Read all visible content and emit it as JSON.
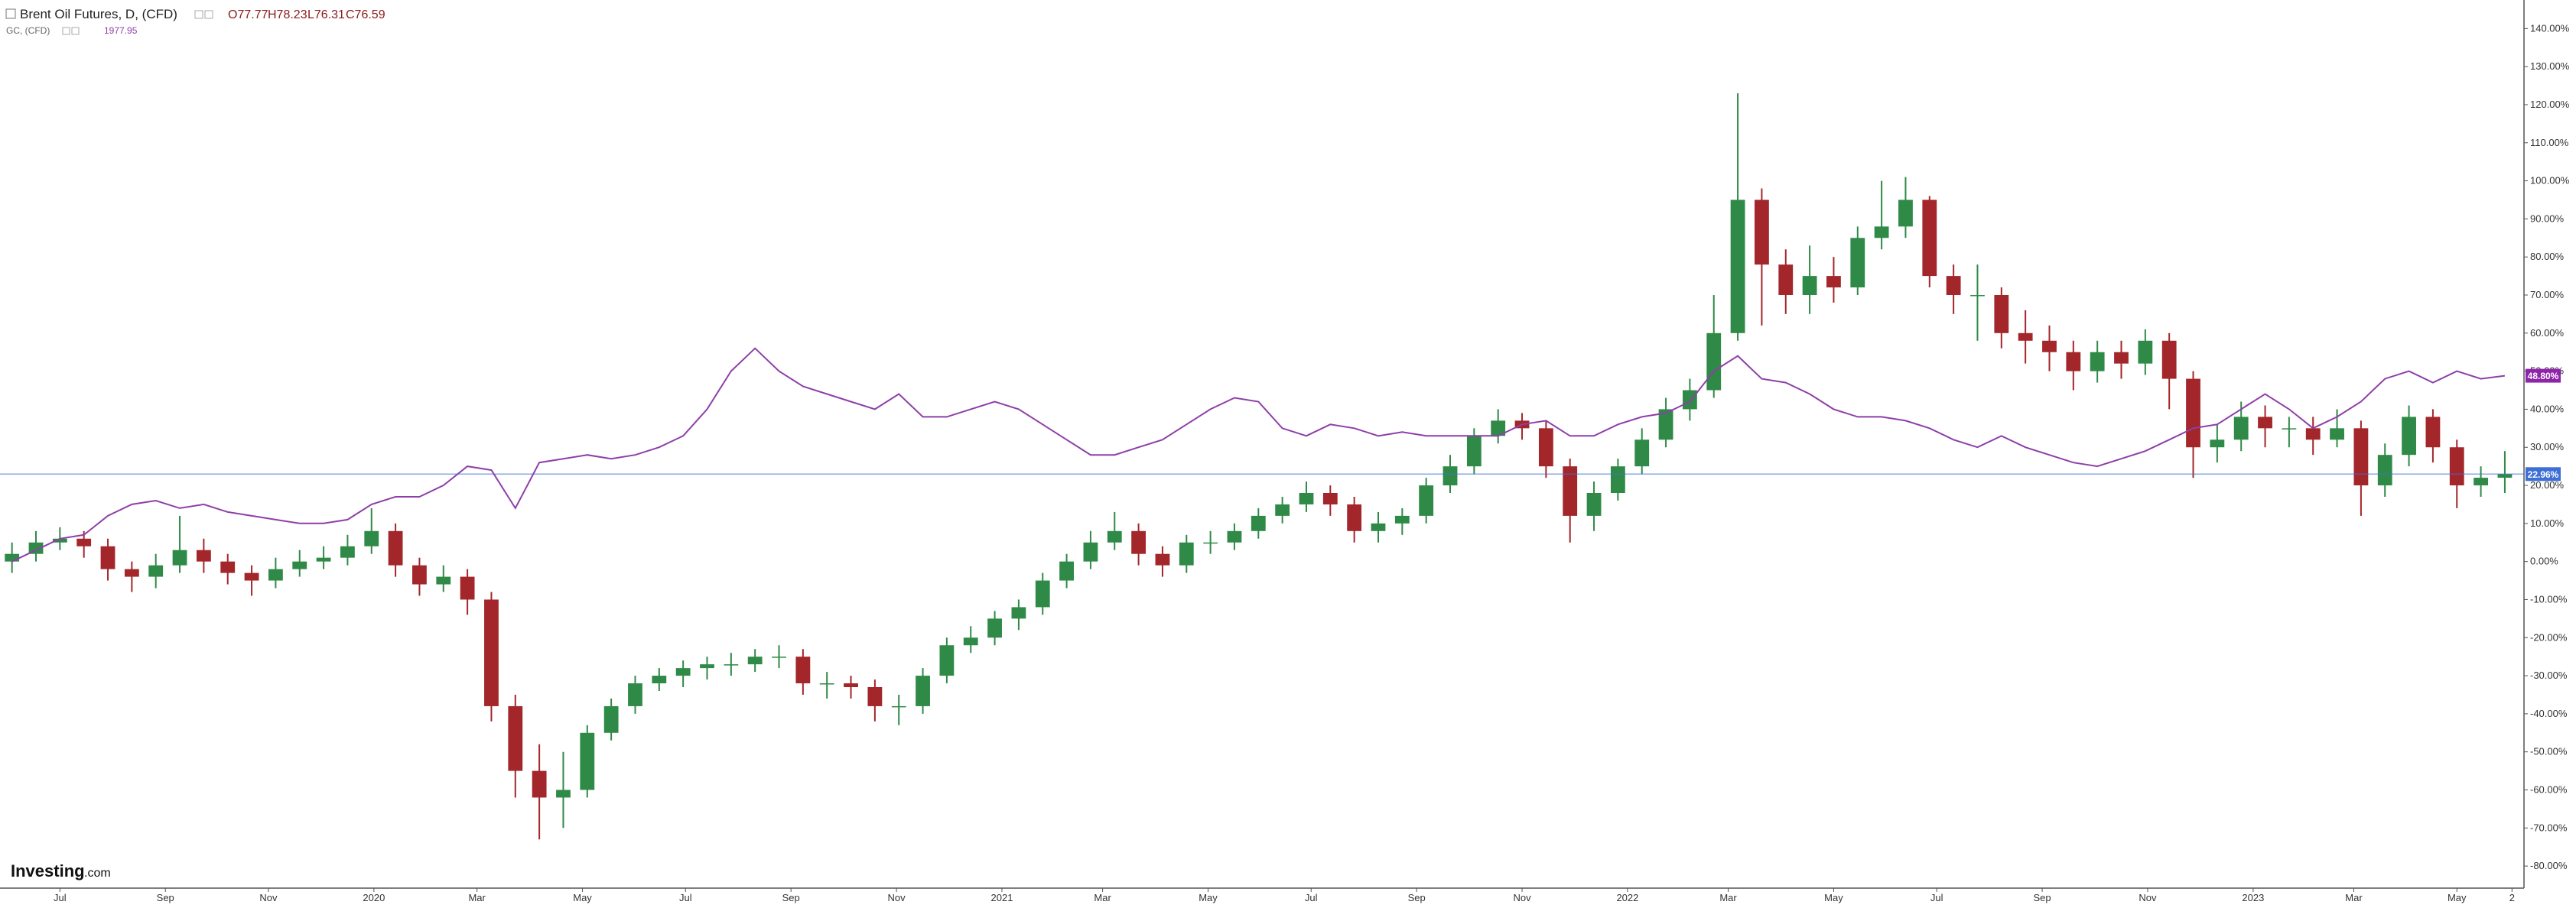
{
  "chart_data": {
    "type": "candlestick",
    "header": {
      "ohlc_labels": [
        "O77.77",
        "H78.23",
        "L76.31",
        "C76.59"
      ],
      "gold_last_text": "1977.95"
    },
    "logo": {
      "brand": "Investing",
      "suffix": ".com"
    },
    "xlim": [
      -0.5,
      104.8
    ],
    "xticks": [
      {
        "value": 2,
        "label": "Jul"
      },
      {
        "value": 6.4,
        "label": "Sep"
      },
      {
        "value": 10.7,
        "label": "Nov"
      },
      {
        "value": 15.1,
        "label": "2020"
      },
      {
        "value": 19.4,
        "label": "Mar"
      },
      {
        "value": 23.8,
        "label": "May"
      },
      {
        "value": 28.1,
        "label": "Jul"
      },
      {
        "value": 32.5,
        "label": "Sep"
      },
      {
        "value": 36.9,
        "label": "Nov"
      },
      {
        "value": 41.3,
        "label": "2021"
      },
      {
        "value": 45.5,
        "label": "Mar"
      },
      {
        "value": 49.9,
        "label": "May"
      },
      {
        "value": 54.2,
        "label": "Jul"
      },
      {
        "value": 58.6,
        "label": "Sep"
      },
      {
        "value": 63,
        "label": "Nov"
      },
      {
        "value": 67.4,
        "label": "2022"
      },
      {
        "value": 71.6,
        "label": "Mar"
      },
      {
        "value": 76,
        "label": "May"
      },
      {
        "value": 80.3,
        "label": "Jul"
      },
      {
        "value": 84.7,
        "label": "Sep"
      },
      {
        "value": 89.1,
        "label": "Nov"
      },
      {
        "value": 93.5,
        "label": "2023"
      },
      {
        "value": 97.7,
        "label": "Mar"
      },
      {
        "value": 102,
        "label": "May"
      },
      {
        "value": 104.3,
        "label": "2"
      }
    ],
    "ylim": [
      -85.8,
      147.5
    ],
    "yticks": [
      {
        "value": 140,
        "label": "140.00%"
      },
      {
        "value": 130,
        "label": "130.00%"
      },
      {
        "value": 120,
        "label": "120.00%"
      },
      {
        "value": 110,
        "label": "110.00%"
      },
      {
        "value": 100,
        "label": "100.00%"
      },
      {
        "value": 90,
        "label": "90.00%"
      },
      {
        "value": 80,
        "label": "80.00%"
      },
      {
        "value": 70,
        "label": "70.00%"
      },
      {
        "value": 60,
        "label": "60.00%"
      },
      {
        "value": 50,
        "label": "50.00%"
      },
      {
        "value": 40,
        "label": "40.00%"
      },
      {
        "value": 30,
        "label": "30.00%"
      },
      {
        "value": 20,
        "label": "20.00%"
      },
      {
        "value": 10,
        "label": "10.00%"
      },
      {
        "value": 0,
        "label": "0.00%"
      },
      {
        "value": -10,
        "label": "-10.00%"
      },
      {
        "value": -20,
        "label": "-20.00%"
      },
      {
        "value": -30,
        "label": "-30.00%"
      },
      {
        "value": -40,
        "label": "-40.00%"
      },
      {
        "value": -50,
        "label": "-50.00%"
      },
      {
        "value": -60,
        "label": "-60.00%"
      },
      {
        "value": -70,
        "label": "-70.00%"
      },
      {
        "value": -80,
        "label": "-80.00%"
      }
    ],
    "grid": false,
    "price_lines": [
      {
        "value": 48.8,
        "label": "48.80%",
        "color": "#8e24aa",
        "line": false
      },
      {
        "value": 22.96,
        "label": "22.96%",
        "color": "#3d6fd6",
        "line": true
      }
    ],
    "series": [
      {
        "name": "Brent Oil Futures, D, (CFD)",
        "type": "candlestick",
        "up_color": "#2f8a47",
        "down_color": "#a3262a",
        "open": [
          0,
          2,
          5,
          6,
          4,
          -2,
          -4,
          -1,
          3,
          0,
          -3,
          -5,
          -2,
          0,
          1,
          4,
          8,
          -1,
          -6,
          -4,
          -10,
          -38,
          -55,
          -62,
          -60,
          -45,
          -38,
          -32,
          -30,
          -28,
          -27,
          -27,
          -25,
          -25,
          -32,
          -32,
          -33,
          -38,
          -38,
          -30,
          -22,
          -20,
          -15,
          -12,
          -5,
          0,
          5,
          8,
          2,
          -1,
          5,
          5,
          8,
          12,
          15,
          18,
          15,
          8,
          10,
          12,
          20,
          25,
          33,
          37,
          35,
          25,
          12,
          18,
          25,
          32,
          40,
          45,
          60,
          95,
          78,
          70,
          75,
          72,
          85,
          88,
          95,
          75,
          70,
          70,
          60,
          58,
          55,
          50,
          55,
          52,
          58,
          48,
          30,
          32,
          38,
          35,
          35,
          32,
          35,
          20,
          28,
          38,
          30,
          20,
          22
        ],
        "high": [
          5,
          8,
          9,
          8,
          6,
          0,
          2,
          12,
          6,
          2,
          -1,
          1,
          3,
          4,
          7,
          14,
          10,
          1,
          -1,
          -2,
          -8,
          -35,
          -48,
          -50,
          -43,
          -36,
          -30,
          -28,
          -26,
          -25,
          -24,
          -23,
          -22,
          -23,
          -29,
          -30,
          -31,
          -35,
          -28,
          -20,
          -17,
          -13,
          -10,
          -3,
          2,
          8,
          13,
          10,
          4,
          7,
          8,
          10,
          14,
          17,
          21,
          20,
          17,
          13,
          14,
          22,
          28,
          35,
          40,
          39,
          37,
          27,
          21,
          27,
          35,
          43,
          48,
          70,
          123,
          98,
          82,
          83,
          80,
          88,
          100,
          101,
          96,
          78,
          78,
          72,
          66,
          62,
          58,
          58,
          58,
          61,
          60,
          50,
          36,
          42,
          41,
          38,
          38,
          40,
          37,
          31,
          41,
          40,
          32,
          25,
          29
        ],
        "low": [
          -3,
          0,
          3,
          1,
          -5,
          -8,
          -7,
          -3,
          -3,
          -6,
          -9,
          -7,
          -4,
          -2,
          -1,
          2,
          -4,
          -9,
          -8,
          -14,
          -42,
          -62,
          -73,
          -70,
          -62,
          -47,
          -40,
          -34,
          -33,
          -31,
          -30,
          -29,
          -28,
          -35,
          -36,
          -36,
          -42,
          -43,
          -40,
          -32,
          -24,
          -22,
          -18,
          -14,
          -7,
          -2,
          3,
          -1,
          -4,
          -3,
          2,
          3,
          6,
          10,
          13,
          12,
          5,
          5,
          7,
          10,
          18,
          23,
          31,
          32,
          22,
          5,
          8,
          16,
          23,
          30,
          37,
          43,
          58,
          62,
          65,
          65,
          68,
          70,
          82,
          85,
          72,
          65,
          58,
          56,
          52,
          50,
          45,
          47,
          48,
          49,
          40,
          22,
          26,
          29,
          30,
          30,
          28,
          30,
          12,
          17,
          25,
          26,
          14,
          17,
          18
        ],
        "close": [
          2,
          5,
          6,
          4,
          -2,
          -4,
          -1,
          3,
          0,
          -3,
          -5,
          -2,
          0,
          1,
          4,
          8,
          -1,
          -6,
          -4,
          -10,
          -38,
          -55,
          -62,
          -60,
          -45,
          -38,
          -32,
          -30,
          -28,
          -27,
          -27,
          -25,
          -25,
          -32,
          -32,
          -33,
          -38,
          -38,
          -30,
          -22,
          -20,
          -15,
          -12,
          -5,
          0,
          5,
          8,
          2,
          -1,
          5,
          5,
          8,
          12,
          15,
          18,
          15,
          8,
          10,
          12,
          20,
          25,
          33,
          37,
          35,
          25,
          12,
          18,
          25,
          32,
          40,
          45,
          60,
          95,
          78,
          70,
          75,
          72,
          85,
          88,
          95,
          75,
          70,
          70,
          60,
          58,
          55,
          50,
          55,
          52,
          58,
          48,
          30,
          32,
          38,
          35,
          35,
          32,
          35,
          20,
          28,
          38,
          30,
          20,
          22,
          23
        ]
      },
      {
        "name": "GC, (CFD)",
        "type": "line",
        "color": "#8e3fa8",
        "values": [
          0,
          3,
          6,
          7,
          12,
          15,
          16,
          14,
          15,
          13,
          12,
          11,
          10,
          10,
          11,
          15,
          17,
          17,
          20,
          25,
          24,
          14,
          26,
          27,
          28,
          27,
          28,
          30,
          33,
          40,
          50,
          56,
          50,
          46,
          44,
          42,
          40,
          44,
          38,
          38,
          40,
          42,
          40,
          36,
          32,
          28,
          28,
          30,
          32,
          36,
          40,
          43,
          42,
          35,
          33,
          36,
          35,
          33,
          34,
          33,
          33,
          33,
          33,
          36,
          37,
          33,
          33,
          36,
          38,
          39,
          42,
          50,
          54,
          48,
          47,
          44,
          40,
          38,
          38,
          37,
          35,
          32,
          30,
          33,
          30,
          28,
          26,
          25,
          27,
          29,
          32,
          35,
          36,
          40,
          44,
          40,
          35,
          38,
          42,
          48,
          50,
          47,
          50,
          48,
          48.8
        ]
      }
    ]
  }
}
